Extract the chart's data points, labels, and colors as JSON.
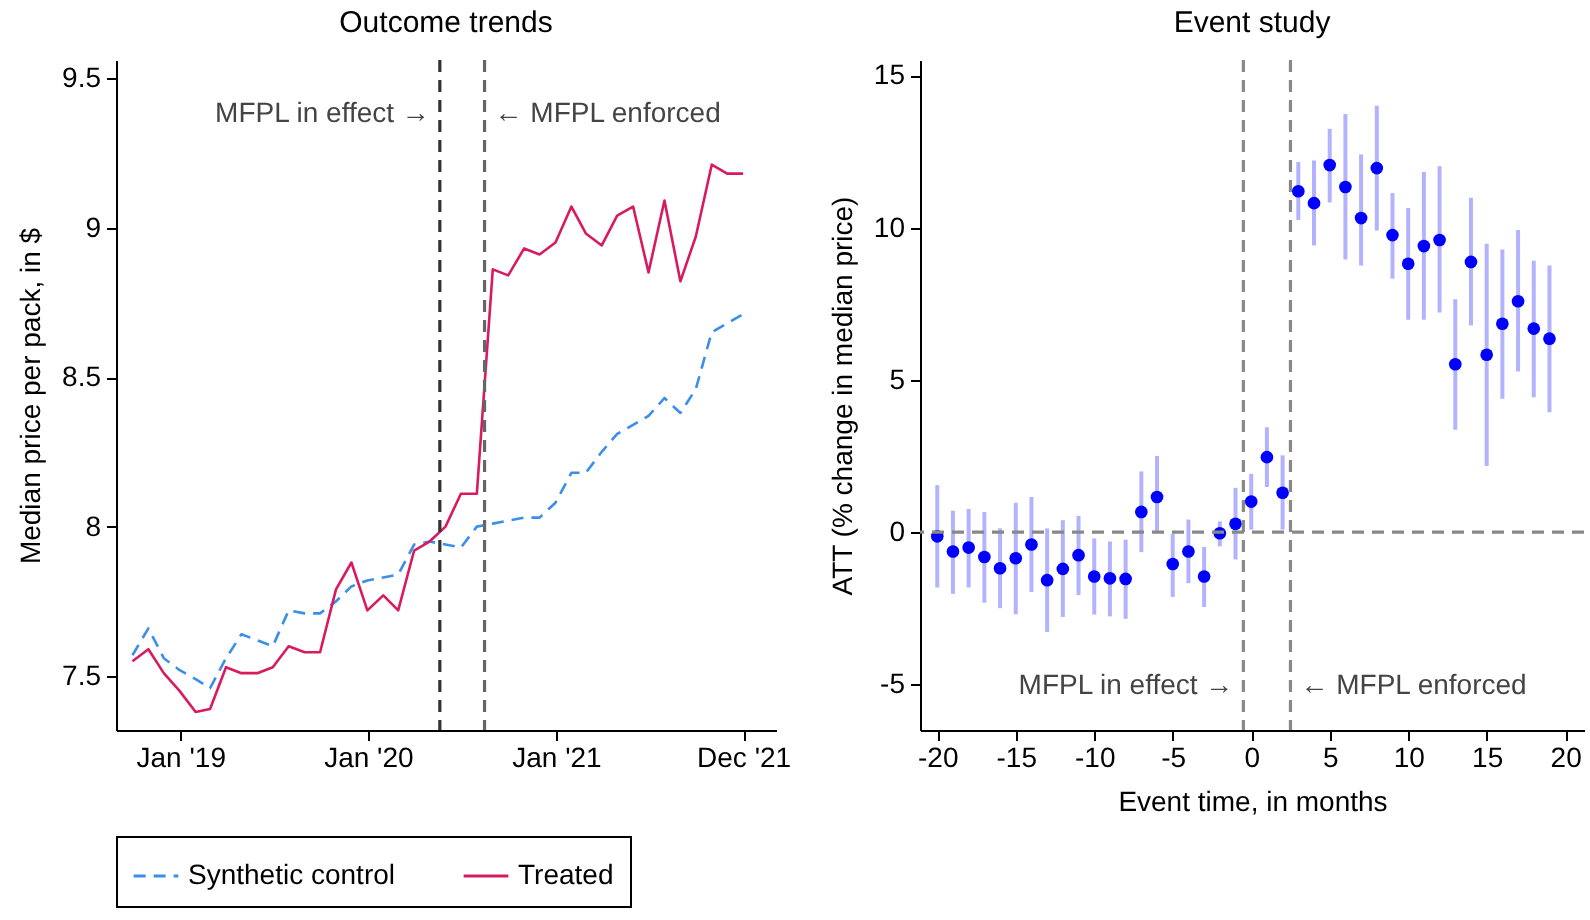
{
  "chart_data": [
    {
      "type": "line",
      "title": "Outcome trends",
      "ylabel": "Median price per pack, in $",
      "x": [
        "2018-09-30",
        "2018-10-31",
        "2018-11-30",
        "2018-12-31",
        "2019-01-31",
        "2019-02-28",
        "2019-03-31",
        "2019-04-30",
        "2019-05-31",
        "2019-06-30",
        "2019-07-31",
        "2019-08-31",
        "2019-09-30",
        "2019-10-31",
        "2019-11-30",
        "2019-12-31",
        "2020-01-31",
        "2020-02-29",
        "2020-03-31",
        "2020-04-30",
        "2020-05-31",
        "2020-06-30",
        "2020-07-31",
        "2020-08-31",
        "2020-09-30",
        "2020-10-31",
        "2020-11-30",
        "2020-12-31",
        "2021-01-31",
        "2021-02-28",
        "2021-03-31",
        "2021-04-30",
        "2021-05-31",
        "2021-06-30",
        "2021-07-31",
        "2021-08-31",
        "2021-09-30",
        "2021-10-31",
        "2021-11-30",
        "2021-12-31"
      ],
      "series": [
        {
          "name": "Synthetic control",
          "color": "#3b8fe8",
          "line_style": "dashed",
          "values": [
            7.57,
            7.66,
            7.56,
            7.52,
            7.49,
            7.46,
            7.56,
            7.64,
            7.62,
            7.6,
            7.72,
            7.71,
            7.71,
            7.75,
            7.8,
            7.82,
            7.83,
            7.84,
            7.94,
            7.95,
            7.94,
            7.93,
            8.0,
            8.01,
            8.02,
            8.03,
            8.03,
            8.08,
            8.18,
            8.18,
            8.25,
            8.31,
            8.34,
            8.37,
            8.43,
            8.38,
            8.46,
            8.65,
            8.68,
            8.71
          ]
        },
        {
          "name": "Treated",
          "color": "#d81b60",
          "line_style": "solid",
          "values": [
            7.55,
            7.59,
            7.51,
            7.45,
            7.38,
            7.39,
            7.53,
            7.51,
            7.51,
            7.53,
            7.6,
            7.58,
            7.58,
            7.79,
            7.88,
            7.72,
            7.77,
            7.72,
            7.92,
            7.95,
            8.0,
            8.11,
            8.11,
            8.86,
            8.84,
            8.93,
            8.91,
            8.95,
            9.07,
            8.98,
            8.94,
            9.04,
            9.07,
            8.85,
            9.09,
            8.82,
            8.97,
            9.21,
            9.18,
            9.18
          ]
        }
      ],
      "xlim": [
        "2018-08-29",
        "2022-03-05"
      ],
      "xticks": [
        {
          "value": "2019-01-01",
          "label": "Jan '19"
        },
        {
          "value": "2020-01-01",
          "label": "Jan '20"
        },
        {
          "value": "2021-01-01",
          "label": "Jan '21"
        },
        {
          "value": "2021-12-31",
          "label": "Dec '21"
        }
      ],
      "ylim": [
        7.32,
        9.56
      ],
      "yticks": [
        7.5,
        8,
        8.5,
        9,
        9.5
      ],
      "ref_lines": [
        {
          "axis": "x",
          "value": "2020-05-20",
          "label": "MFPL in effect →",
          "color": "#333333",
          "line_style": "dashed"
        },
        {
          "axis": "x",
          "value": "2020-08-15",
          "label": "← MFPL enforced",
          "color": "#666666",
          "line_style": "dashed"
        }
      ],
      "legend": "bottom"
    },
    {
      "type": "scatter",
      "title": "Event study",
      "xlabel": "Event time, in months",
      "ylabel": "ATT (% change in median price)",
      "x": [
        -20,
        -19,
        -18,
        -17,
        -16,
        -15,
        -14,
        -13,
        -12,
        -11,
        -10,
        -9,
        -8,
        -7,
        -6,
        -5,
        -4,
        -3,
        -2,
        -1,
        0,
        1,
        2,
        3,
        4,
        5,
        6,
        7,
        8,
        9,
        10,
        11,
        12,
        13,
        14,
        15,
        16,
        17,
        18,
        19
      ],
      "series": [
        {
          "color": "#0000ff",
          "values": [
            -0.14,
            -0.64,
            -0.51,
            -0.82,
            -1.19,
            -0.86,
            -0.41,
            -1.58,
            -1.21,
            -0.76,
            -1.46,
            -1.52,
            -1.54,
            0.66,
            1.15,
            -1.05,
            -0.64,
            -1.46,
            -0.04,
            0.27,
            1.0,
            2.46,
            1.29,
            11.19,
            10.8,
            12.05,
            11.33,
            10.31,
            11.95,
            9.75,
            8.81,
            9.39,
            9.59,
            5.51,
            8.87,
            5.82,
            6.84,
            7.58,
            6.68,
            6.35
          ],
          "errors": [
            [
              -1.82,
              1.54
            ],
            [
              -2.03,
              0.7
            ],
            [
              -1.82,
              0.76
            ],
            [
              -2.32,
              0.66
            ],
            [
              -2.5,
              0.12
            ],
            [
              -2.7,
              0.96
            ],
            [
              -1.97,
              1.15
            ],
            [
              -3.28,
              0.12
            ],
            [
              -2.79,
              0.39
            ],
            [
              -2.07,
              0.53
            ],
            [
              -2.71,
              -0.21
            ],
            [
              -2.77,
              -0.31
            ],
            [
              -2.85,
              -0.25
            ],
            [
              -0.66,
              1.99
            ],
            [
              -0.02,
              2.5
            ],
            [
              -2.13,
              -0.06
            ],
            [
              -1.68,
              0.41
            ],
            [
              -2.46,
              -0.49
            ],
            [
              -0.47,
              0.35
            ],
            [
              -0.9,
              1.45
            ],
            [
              0.08,
              1.91
            ],
            [
              1.48,
              3.44
            ],
            [
              0.08,
              2.52
            ],
            [
              10.25,
              12.15
            ],
            [
              9.41,
              12.2
            ],
            [
              10.82,
              13.24
            ],
            [
              8.95,
              13.73
            ],
            [
              8.75,
              12.4
            ],
            [
              9.9,
              14.0
            ],
            [
              8.32,
              11.13
            ],
            [
              6.97,
              10.64
            ],
            [
              6.97,
              11.82
            ],
            [
              7.21,
              12.01
            ],
            [
              3.36,
              7.64
            ],
            [
              6.78,
              10.98
            ],
            [
              2.17,
              9.47
            ],
            [
              4.38,
              9.28
            ],
            [
              5.27,
              9.92
            ],
            [
              4.43,
              8.91
            ],
            [
              3.93,
              8.75
            ]
          ]
        }
      ],
      "marker": "circle",
      "xlim": [
        -21.1,
        21.2
      ],
      "xticks": [
        -20,
        -15,
        -10,
        -5,
        0,
        5,
        10,
        15,
        20
      ],
      "ylim": [
        -6.5,
        15.5
      ],
      "yticks": [
        -5,
        0,
        5,
        10,
        15
      ],
      "ref_lines": [
        {
          "axis": "x",
          "value": -0.5,
          "label": "MFPL in effect →",
          "color": "#888888",
          "line_style": "dashed"
        },
        {
          "axis": "x",
          "value": 2.5,
          "label": "← MFPL enforced",
          "color": "#888888",
          "line_style": "dashed"
        },
        {
          "axis": "y",
          "value": 0,
          "label": null,
          "color": "#888888",
          "line_style": "dashed"
        }
      ]
    }
  ]
}
